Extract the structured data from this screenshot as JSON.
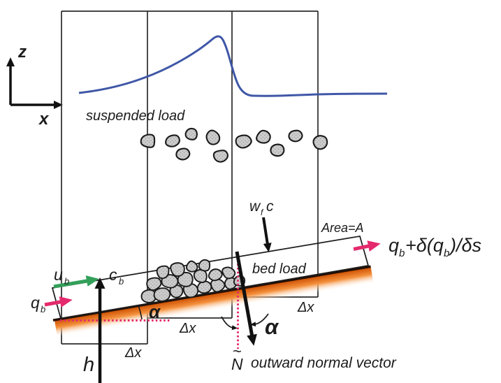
{
  "figure": {
    "axis_labels": {
      "z": "z",
      "x": "x"
    },
    "labels": {
      "suspended_load": "suspended load",
      "bed_load": "bed load",
      "area": "Area=A",
      "wfc_w": "w",
      "wfc_f": "f",
      "wfc_c": "c",
      "ub_main": "u",
      "ub_sub": "b",
      "cb_main": "c",
      "cb_sub": "b",
      "qb_main": "q",
      "qb_sub": "b",
      "h": "h",
      "alpha_bed": "α",
      "alpha_normal": "α",
      "dx_col1": "Δx",
      "dx_col2": "Δx",
      "dx_col3": "Δx",
      "flux_q": "q",
      "flux_q_sub": "b",
      "flux_mid": "+δ(q",
      "flux_mid_sub": "b",
      "flux_end": ")/δs",
      "normal_n": "N",
      "normal_tilde": "~",
      "normal_caption": "outward normal vector"
    },
    "colors": {
      "pink": "#e42a6d",
      "green": "#33a05a",
      "curve_blue": "#3f57a7",
      "red": "#ee1f26",
      "orange_deep": "#cc4e00",
      "orange_mid": "#f4913d",
      "bed_edge": "#241007",
      "line_dark": "#2b2b2b",
      "rock_fill": "#cccccc"
    },
    "suspended_particles": [
      [
        212,
        202,
        12
      ],
      [
        247,
        202,
        11
      ],
      [
        273,
        192,
        10
      ],
      [
        262,
        220,
        10
      ],
      [
        305,
        197,
        12
      ],
      [
        316,
        223,
        11
      ],
      [
        348,
        202,
        12
      ],
      [
        377,
        195,
        11
      ],
      [
        397,
        215,
        10
      ],
      [
        423,
        194,
        10
      ],
      [
        458,
        205,
        12
      ]
    ],
    "gravel": [
      [
        213,
        424,
        11
      ],
      [
        232,
        421,
        12
      ],
      [
        252,
        418,
        11
      ],
      [
        272,
        415,
        12
      ],
      [
        292,
        411,
        11
      ],
      [
        312,
        408,
        11
      ],
      [
        330,
        405,
        10
      ],
      [
        343,
        403,
        9
      ],
      [
        221,
        406,
        11
      ],
      [
        243,
        403,
        12
      ],
      [
        265,
        400,
        12
      ],
      [
        287,
        396,
        11
      ],
      [
        308,
        393,
        11
      ],
      [
        327,
        390,
        10
      ],
      [
        233,
        389,
        11
      ],
      [
        254,
        385,
        11
      ],
      [
        275,
        382,
        10
      ],
      [
        293,
        380,
        9
      ]
    ]
  }
}
